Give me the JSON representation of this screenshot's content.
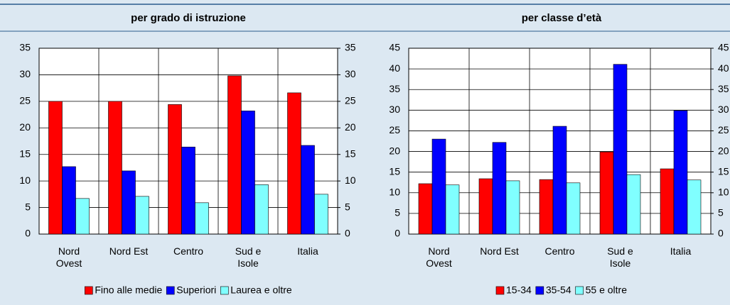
{
  "chart_data": [
    {
      "type": "bar",
      "title": "per grado di istruzione",
      "categories": [
        "Nord Ovest",
        "Nord Est",
        "Centro",
        "Sud e Isole",
        "Italia"
      ],
      "series": [
        {
          "name": "Fino alle medie",
          "color": "#ff0000",
          "values": [
            25.0,
            25.0,
            24.4,
            29.8,
            26.6
          ]
        },
        {
          "name": "Superiori",
          "color": "#0000ff",
          "values": [
            12.7,
            11.9,
            16.4,
            23.2,
            16.7
          ]
        },
        {
          "name": "Laurea e oltre",
          "color": "#80ffff",
          "values": [
            6.7,
            7.1,
            5.9,
            9.3,
            7.5
          ]
        }
      ],
      "ylim": [
        0,
        35
      ],
      "yticks": [
        0,
        5,
        10,
        15,
        20,
        25,
        30,
        35
      ],
      "y2lim": [
        0,
        35
      ],
      "y2ticks": [
        0,
        5,
        10,
        15,
        20,
        25,
        30,
        35
      ],
      "grid": true
    },
    {
      "type": "bar",
      "title": "per classe d’età",
      "categories": [
        "Nord Ovest",
        "Nord Est",
        "Centro",
        "Sud e Isole",
        "Italia"
      ],
      "series": [
        {
          "name": "15-34",
          "color": "#ff0000",
          "values": [
            12.2,
            13.4,
            13.2,
            19.9,
            15.8
          ]
        },
        {
          "name": "35-54",
          "color": "#0000ff",
          "values": [
            23.0,
            22.2,
            26.1,
            41.1,
            29.9
          ]
        },
        {
          "name": "55 e oltre",
          "color": "#80ffff",
          "values": [
            11.9,
            12.9,
            12.4,
            14.4,
            13.1
          ]
        }
      ],
      "ylim": [
        0,
        45
      ],
      "yticks": [
        0,
        5,
        10,
        15,
        20,
        25,
        30,
        35,
        40,
        45
      ],
      "y2lim": [
        0,
        45
      ],
      "y2ticks": [
        0,
        5,
        10,
        15,
        20,
        25,
        30,
        35,
        40,
        45
      ],
      "grid": true
    }
  ]
}
